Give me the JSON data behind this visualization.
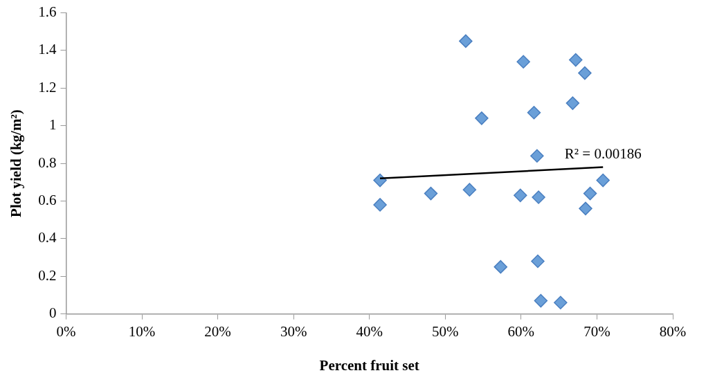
{
  "chart_data": {
    "type": "scatter",
    "xlabel": "Percent fruit set",
    "ylabel": "Plot yield (kg/m²)",
    "xlim": [
      0,
      0.8
    ],
    "xticks": [
      {
        "value": 0,
        "label": "0%"
      },
      {
        "value": 0.1,
        "label": "10%"
      },
      {
        "value": 0.2,
        "label": "20%"
      },
      {
        "value": 0.3,
        "label": "30%"
      },
      {
        "value": 0.4,
        "label": "40%"
      },
      {
        "value": 0.5,
        "label": "50%"
      },
      {
        "value": 0.6,
        "label": "60%"
      },
      {
        "value": 0.7,
        "label": "70%"
      },
      {
        "value": 0.8,
        "label": "80%"
      }
    ],
    "ylim": [
      0,
      1.6
    ],
    "yticks": [
      0,
      0.2,
      0.4,
      0.6,
      0.8,
      1,
      1.2,
      1.4,
      1.6
    ],
    "grid": false,
    "legend": false,
    "marker": "diamond",
    "series": [
      {
        "color": "#6a9fd8",
        "x": [
          0.527,
          0.603,
          0.672,
          0.684,
          0.668,
          0.548,
          0.617,
          0.621,
          0.414,
          0.414,
          0.481,
          0.532,
          0.599,
          0.623,
          0.691,
          0.685,
          0.708,
          0.573,
          0.622,
          0.626,
          0.652
        ],
        "values": [
          1.45,
          1.34,
          1.35,
          1.28,
          1.12,
          1.04,
          1.07,
          0.84,
          0.71,
          0.58,
          0.64,
          0.66,
          0.63,
          0.62,
          0.64,
          0.56,
          0.71,
          0.25,
          0.28,
          0.07,
          0.06
        ]
      },
      {
        "type": "line",
        "color": "#000000",
        "marker": "none",
        "line_style": "solid",
        "x": [
          0.414,
          0.708
        ],
        "values": [
          0.72,
          0.78
        ]
      }
    ],
    "annotations": [
      {
        "text": "R² = 0.00186",
        "x": 0.708,
        "y": 0.78
      }
    ]
  }
}
